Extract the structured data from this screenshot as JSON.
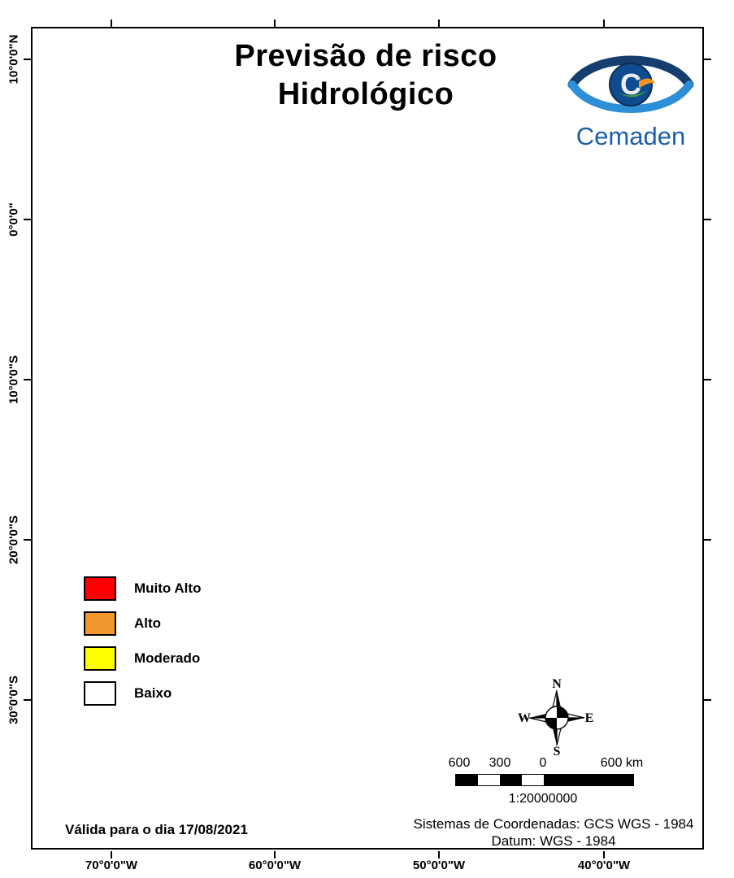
{
  "title": {
    "line1": "Previsão de risco",
    "line2": "Hidrológico"
  },
  "logo": {
    "wordmark": "Cemaden",
    "brand_color": "#1C5FA8"
  },
  "legend": {
    "items": [
      {
        "label": "Muito Alto",
        "color": "#FF0000"
      },
      {
        "label": "Alto",
        "color": "#F0962D"
      },
      {
        "label": "Moderado",
        "color": "#FFFF00"
      },
      {
        "label": "Baixo",
        "color": "#FFFFFF"
      }
    ]
  },
  "axes": {
    "left_labels": [
      "10°0'0\"N",
      "0°0'0\"",
      "10°0'0\"S",
      "20°0'0\"S",
      "30°0'0\"S"
    ],
    "bottom_labels": [
      "70°0'0\"W",
      "60°0'0\"W",
      "50°0'0\"W",
      "40°0'0\"W"
    ]
  },
  "compass": {
    "north": "N",
    "south": "S",
    "east": "E",
    "west": "W"
  },
  "scale_bar": {
    "tick_labels": [
      "600",
      "300",
      "0",
      "600 km"
    ],
    "ratio": "1:20000000"
  },
  "validity": {
    "text": "Válida para o dia 17/08/2021"
  },
  "crs": {
    "line1": "Sistemas de Coordenadas: GCS WGS - 1984",
    "line2": "Datum: WGS - 1984"
  }
}
